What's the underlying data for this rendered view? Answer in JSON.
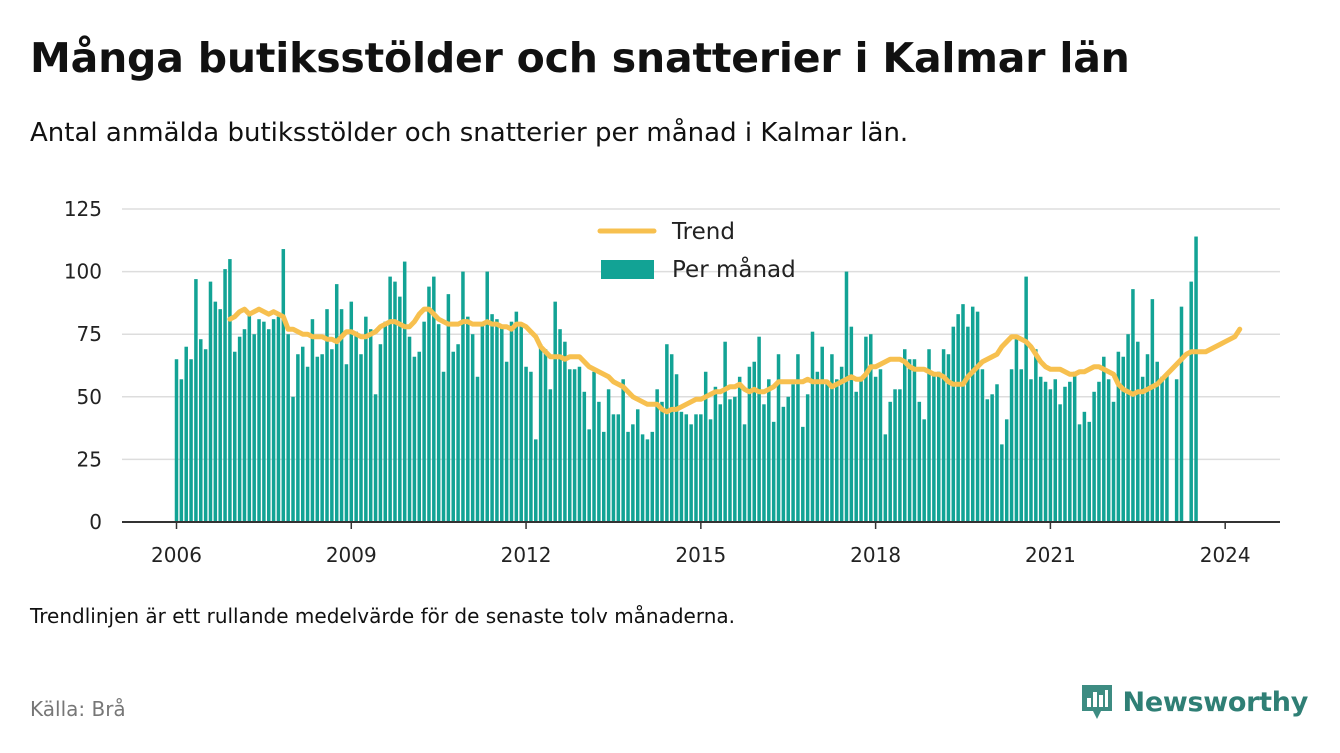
{
  "title": "Många butiksstölder och snatterier i Kalmar län",
  "subtitle": "Antal anmälda butiksstölder och snatterier per månad i Kalmar län.",
  "note": "Trendlinjen är ett rullande medelvärde för de senaste tolv månaderna.",
  "source": "Källa: Brå",
  "brand": {
    "name": "Newsworthy",
    "icon": "newsworthy-logo-icon"
  },
  "colors": {
    "bars": "#12a395",
    "trend": "#f7c04f",
    "brand": "#2f7f75",
    "grid": "#dddddd",
    "axis": "#333333"
  },
  "chart_data": {
    "type": "bar",
    "x_start": "2006-01",
    "xticks": [
      "2006",
      "2009",
      "2012",
      "2015",
      "2018",
      "2021",
      "2024"
    ],
    "yticks": [
      "0",
      "25",
      "50",
      "75",
      "100",
      "125"
    ],
    "ylim": [
      0,
      125
    ],
    "grid": true,
    "legend_position": "top-center",
    "series": [
      {
        "name": "Per månad",
        "type": "bar",
        "values": [
          65,
          57,
          70,
          65,
          97,
          73,
          69,
          96,
          88,
          85,
          101,
          105,
          68,
          74,
          77,
          83,
          75,
          81,
          80,
          77,
          81,
          82,
          109,
          75,
          50,
          67,
          70,
          62,
          81,
          66,
          67,
          85,
          69,
          95,
          85,
          63,
          88,
          76,
          67,
          82,
          77,
          51,
          71,
          80,
          98,
          96,
          90,
          104,
          74,
          66,
          68,
          80,
          94,
          98,
          79,
          60,
          91,
          68,
          71,
          100,
          82,
          75,
          58,
          79,
          100,
          83,
          81,
          78,
          64,
          80,
          84,
          79,
          62,
          60,
          33,
          71,
          69,
          53,
          88,
          77,
          72,
          61,
          61,
          62,
          52,
          37,
          60,
          48,
          36,
          53,
          43,
          43,
          57,
          36,
          39,
          45,
          35,
          33,
          36,
          53,
          48,
          71,
          67,
          59,
          44,
          43,
          39,
          43,
          43,
          60,
          41,
          54,
          47,
          72,
          49,
          50,
          58,
          39,
          62,
          64,
          74,
          47,
          57,
          40,
          67,
          46,
          50,
          55,
          67,
          38,
          51,
          76,
          60,
          70,
          55,
          67,
          57,
          62,
          100,
          78,
          52,
          58,
          74,
          75,
          58,
          61,
          35,
          48,
          53,
          53,
          69,
          65,
          65,
          48,
          41,
          69,
          59,
          60,
          69,
          67,
          78,
          83,
          87,
          78,
          86,
          84,
          61,
          49,
          51,
          55,
          31,
          41,
          61,
          73,
          61,
          98,
          57,
          69,
          58,
          56,
          53,
          57,
          47,
          54,
          56,
          60,
          39,
          44,
          40,
          52,
          56,
          66,
          57,
          48,
          68,
          66,
          75,
          93,
          72,
          58,
          67,
          89,
          64,
          58,
          59,
          0,
          57,
          86,
          0,
          96,
          114
        ]
      },
      {
        "name": "Trend",
        "type": "line",
        "values": [
          null,
          null,
          null,
          null,
          null,
          null,
          null,
          null,
          null,
          null,
          null,
          81,
          82,
          84,
          85,
          83,
          84,
          85,
          84,
          83,
          84,
          83,
          82,
          77,
          77,
          76,
          75,
          75,
          74,
          74,
          74,
          73,
          73,
          72,
          74,
          76,
          76,
          75,
          74,
          74,
          75,
          76,
          78,
          79,
          80,
          80,
          79,
          78,
          78,
          80,
          83,
          85,
          85,
          83,
          81,
          80,
          79,
          79,
          79,
          80,
          80,
          79,
          79,
          79,
          80,
          79,
          79,
          78,
          78,
          77,
          79,
          79,
          78,
          76,
          74,
          70,
          68,
          66,
          66,
          66,
          65,
          66,
          66,
          66,
          64,
          62,
          61,
          60,
          59,
          58,
          56,
          55,
          54,
          52,
          50,
          49,
          48,
          47,
          47,
          47,
          45,
          44,
          45,
          45,
          46,
          47,
          48,
          49,
          49,
          50,
          51,
          52,
          52,
          53,
          54,
          54,
          55,
          53,
          52,
          53,
          52,
          52,
          53,
          54,
          56,
          56,
          56,
          56,
          56,
          56,
          57,
          56,
          56,
          56,
          56,
          54,
          55,
          56,
          57,
          58,
          57,
          57,
          59,
          62,
          62,
          63,
          64,
          65,
          65,
          65,
          64,
          62,
          61,
          61,
          61,
          60,
          59,
          59,
          58,
          56,
          55,
          55,
          55,
          58,
          60,
          62,
          64,
          65,
          66,
          67,
          70,
          72,
          74,
          74,
          73,
          72,
          70,
          67,
          64,
          62,
          61,
          61,
          61,
          60,
          59,
          59,
          60,
          60,
          61,
          62,
          62,
          61,
          60,
          59,
          55,
          53,
          52,
          51,
          52,
          52,
          53,
          54,
          55,
          57,
          59,
          61,
          63,
          65,
          67,
          68,
          68,
          68,
          68,
          69,
          70,
          71,
          72,
          73,
          74,
          77
        ]
      }
    ]
  }
}
